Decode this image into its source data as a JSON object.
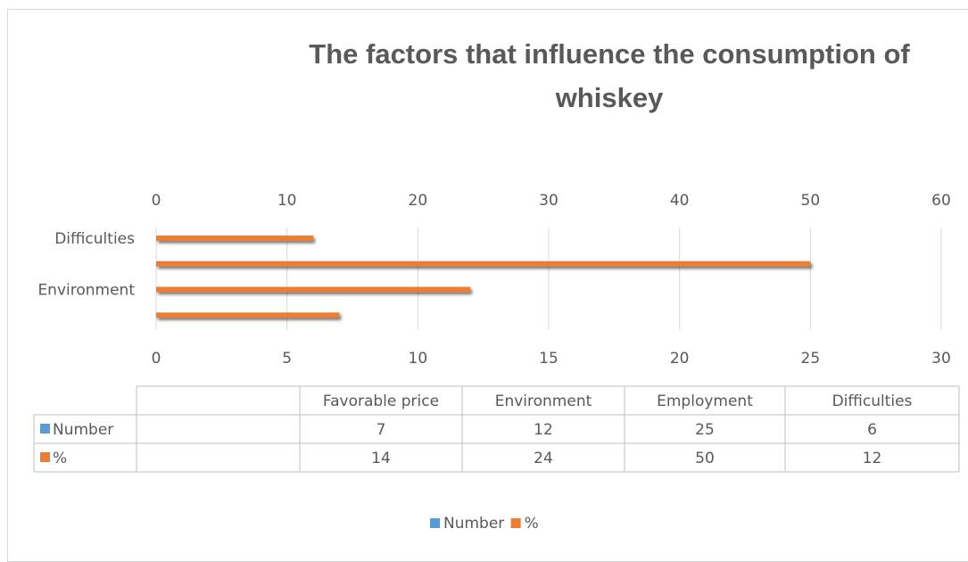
{
  "chart_data": {
    "type": "bar",
    "orientation": "horizontal",
    "title_lines": [
      "The factors that influence the consumption of",
      "whiskey"
    ],
    "categories": [
      "Favorable price",
      "Environment",
      "Employment",
      "Difficulties"
    ],
    "visible_category_labels": [
      "Difficulties",
      "Environment"
    ],
    "series": [
      {
        "name": "Number",
        "values": [
          7,
          12,
          25,
          6
        ],
        "color": "#5b9bd5",
        "axis": "bottom",
        "drawn": false
      },
      {
        "name": "%",
        "values": [
          14,
          24,
          50,
          12
        ],
        "color": "#ed7d31",
        "axis": "top",
        "drawn": true
      }
    ],
    "top_axis": {
      "min": 0,
      "max": 60,
      "ticks": [
        0,
        10,
        20,
        30,
        40,
        50,
        60
      ]
    },
    "bottom_axis": {
      "min": 0,
      "max": 30,
      "ticks": [
        0,
        5,
        10,
        15,
        20,
        25,
        30
      ]
    },
    "grid": true,
    "data_table": true,
    "legend_position": "bottom"
  }
}
